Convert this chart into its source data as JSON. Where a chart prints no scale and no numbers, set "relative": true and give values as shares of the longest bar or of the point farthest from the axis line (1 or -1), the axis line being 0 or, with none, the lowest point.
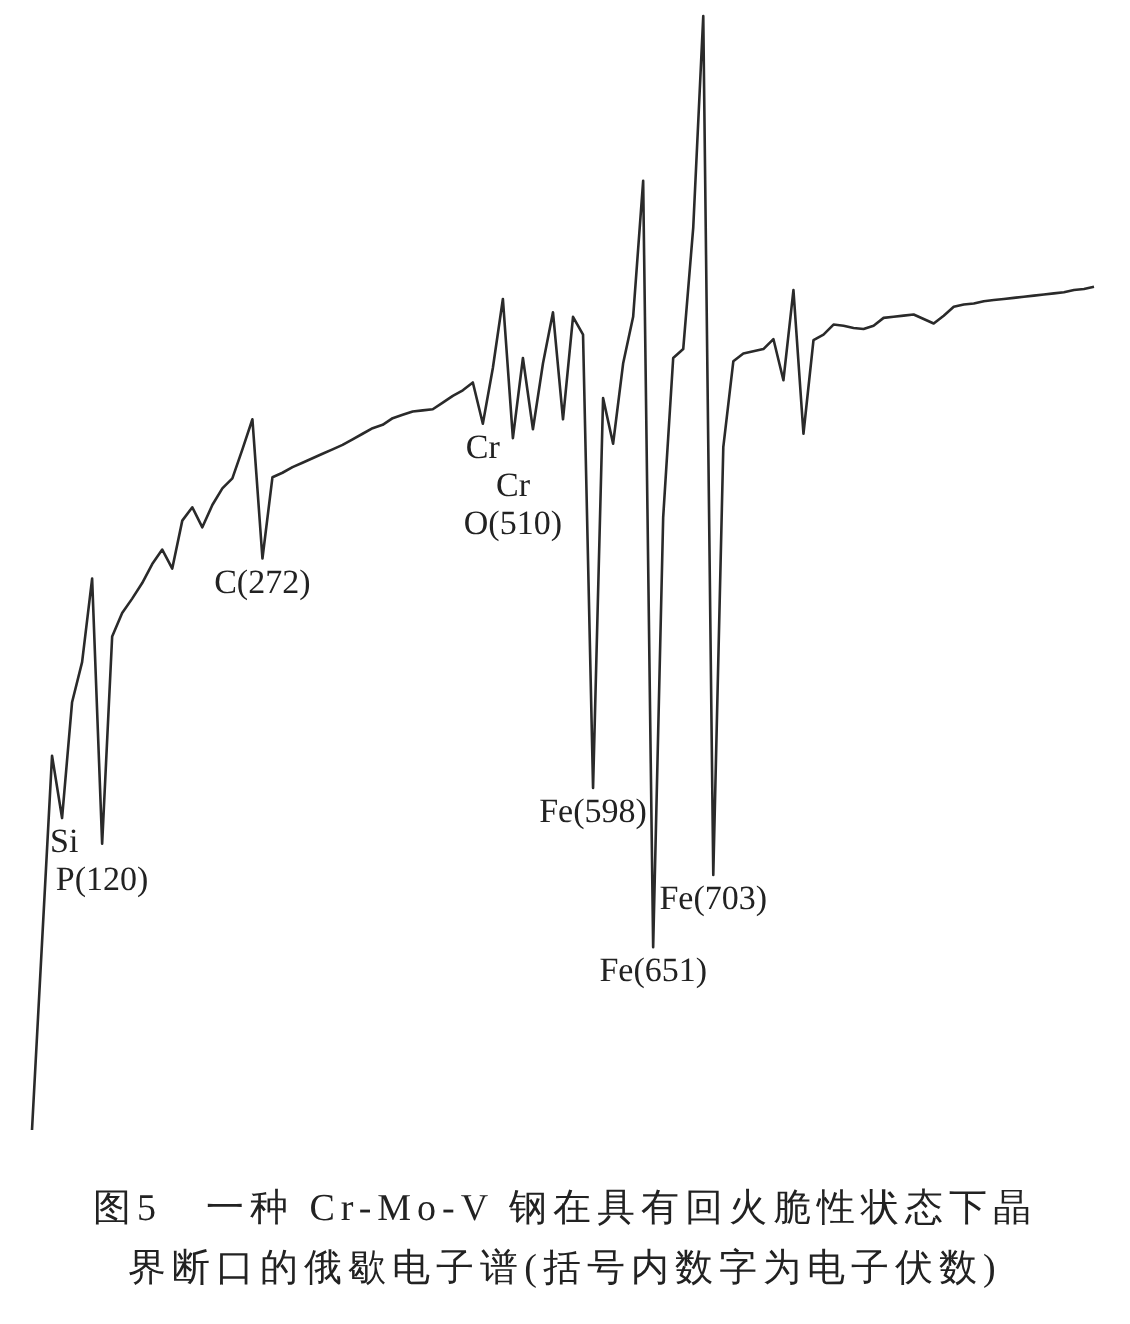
{
  "chart_data": {
    "type": "line",
    "relative": true,
    "color": "#2a2a2a",
    "title": "图5　一种 Cr-Mo-V 钢在具有回火脆性状态下晶界断口的俄歇电子谱(括号内数字为电子伏数)",
    "categories": [
      null,
      null,
      null,
      null,
      null,
      null,
      null,
      null,
      null,
      null,
      null,
      null,
      null,
      null,
      null,
      null,
      null,
      null,
      null,
      null,
      null,
      null,
      null,
      null,
      null,
      null,
      null,
      null,
      null,
      null,
      null,
      null,
      null,
      null,
      null,
      null,
      null,
      null,
      null,
      null,
      null,
      null,
      null,
      null,
      null,
      null,
      null,
      null,
      null,
      null,
      null,
      null,
      null,
      null,
      null,
      null,
      null,
      null,
      null,
      null,
      null,
      null,
      null,
      null,
      null,
      null,
      null,
      null,
      null,
      null,
      null,
      null,
      null,
      null,
      null,
      null,
      null,
      null,
      null,
      null,
      null,
      null,
      null,
      null,
      null,
      null,
      null,
      null,
      null,
      null,
      null,
      null,
      null,
      null,
      null,
      null,
      null,
      null,
      null,
      null,
      null,
      null,
      null,
      null,
      null,
      null,
      null
    ],
    "values": [
      0,
      0.168,
      0.336,
      0.28,
      0.384,
      0.42,
      0.495,
      0.257,
      0.443,
      0.464,
      0.477,
      0.491,
      0.508,
      0.521,
      0.504,
      0.547,
      0.559,
      0.541,
      0.561,
      0.576,
      0.585,
      0.611,
      0.638,
      0.513,
      0.586,
      0.59,
      0.595,
      0.599,
      0.603,
      0.607,
      0.611,
      0.615,
      0.62,
      0.625,
      0.63,
      0.633,
      0.639,
      0.642,
      0.645,
      0.646,
      0.647,
      0.653,
      0.659,
      0.664,
      0.671,
      0.634,
      0.684,
      0.746,
      0.621,
      0.693,
      0.629,
      0.688,
      0.734,
      0.638,
      0.73,
      0.714,
      0.307,
      0.657,
      0.616,
      0.688,
      0.73,
      0.852,
      0.164,
      0.55,
      0.693,
      0.701,
      0.81,
      1,
      0.229,
      0.613,
      0.69,
      0.697,
      0.699,
      0.701,
      0.71,
      0.673,
      0.754,
      0.625,
      0.709,
      0.714,
      0.723,
      0.722,
      0.72,
      0.719,
      0.722,
      0.729,
      0.73,
      0.731,
      0.732,
      0.728,
      0.724,
      0.731,
      0.739,
      0.741,
      0.742,
      0.744,
      0.745,
      0.746,
      0.747,
      0.748,
      0.749,
      0.75,
      0.751,
      0.752,
      0.754,
      0.755,
      0.757
    ],
    "annotations": [
      {
        "text": "Si",
        "y": 0.28
      },
      {
        "text": "P(120)",
        "y": 0.257
      },
      {
        "text": "C(272)",
        "y": 0.513
      },
      {
        "text": "Cr",
        "y": 0.634
      },
      {
        "text": "Cr",
        "y": 0.621
      },
      {
        "text": "O(510)",
        "y": 0.621
      },
      {
        "text": "Fe(598)",
        "y": 0.307
      },
      {
        "text": "Fe(651)",
        "y": 0.164
      },
      {
        "text": "Fe(703)",
        "y": 0.229
      }
    ]
  }
}
